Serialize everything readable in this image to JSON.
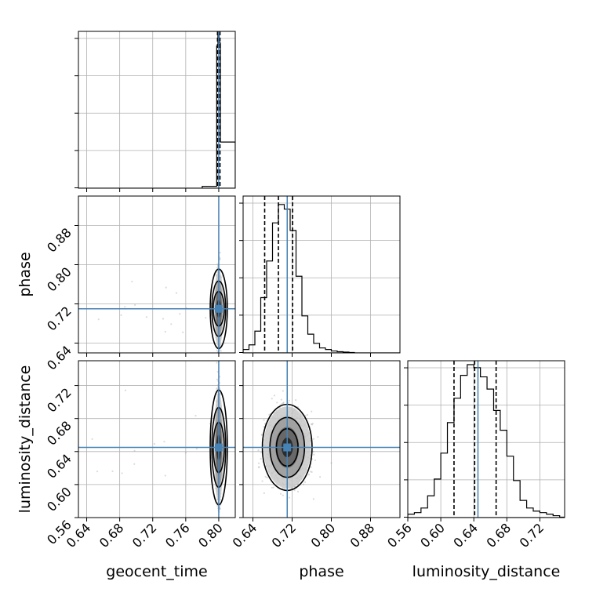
{
  "chart_data": {
    "type": "corner",
    "parameters": [
      "geocent_time",
      "phase",
      "luminosity_distance"
    ],
    "truths": {
      "geocent_time": 0.8,
      "phase": 0.71,
      "luminosity_distance": 0.645
    },
    "ranges": {
      "geocent_time": [
        0.63,
        0.82
      ],
      "phase": [
        0.62,
        0.94
      ],
      "luminosity_distance": [
        0.56,
        0.75
      ]
    },
    "ticks": {
      "geocent_time": [
        "0.64",
        "0.68",
        "0.72",
        "0.76",
        "0.80"
      ],
      "phase": [
        "0.64",
        "0.72",
        "0.80",
        "0.88"
      ],
      "luminosity_distance": [
        "0.56",
        "0.60",
        "0.64",
        "0.68",
        "0.72"
      ]
    },
    "quantiles": {
      "geocent_time": [
        0.7985,
        0.8,
        0.8015
      ],
      "phase": [
        0.664,
        0.692,
        0.721
      ],
      "luminosity_distance": [
        0.616,
        0.641,
        0.667
      ]
    },
    "histograms": {
      "geocent_time": {
        "edges": [
          0.78,
          0.7975,
          0.799,
          0.8005,
          0.802,
          0.82
        ],
        "counts": [
          0.01,
          0.93,
          1.0,
          0.95,
          0.3
        ]
      },
      "phase": {
        "edges": [
          0.62,
          0.632,
          0.644,
          0.656,
          0.668,
          0.68,
          0.692,
          0.704,
          0.716,
          0.728,
          0.74,
          0.752,
          0.764,
          0.776,
          0.788,
          0.8,
          0.812,
          0.824,
          0.836,
          0.848
        ],
        "counts": [
          0.02,
          0.05,
          0.14,
          0.36,
          0.6,
          0.85,
          0.97,
          0.94,
          0.8,
          0.5,
          0.24,
          0.12,
          0.06,
          0.03,
          0.02,
          0.01,
          0.005,
          0.003,
          0.0
        ]
      },
      "luminosity_distance": {
        "edges": [
          0.56,
          0.568,
          0.576,
          0.584,
          0.592,
          0.6,
          0.608,
          0.616,
          0.624,
          0.632,
          0.64,
          0.648,
          0.656,
          0.664,
          0.672,
          0.68,
          0.688,
          0.696,
          0.704,
          0.712,
          0.72,
          0.728,
          0.736,
          0.744,
          0.752
        ],
        "counts": [
          0.02,
          0.03,
          0.06,
          0.14,
          0.25,
          0.42,
          0.62,
          0.78,
          0.93,
          1.0,
          0.98,
          0.92,
          0.84,
          0.7,
          0.57,
          0.4,
          0.24,
          0.11,
          0.06,
          0.04,
          0.03,
          0.02,
          0.01,
          0.0
        ]
      }
    },
    "grid": true,
    "xlabels": [
      "geocent_time",
      "phase",
      "luminosity_distance"
    ],
    "ylabels": [
      "",
      "phase",
      "luminosity_distance"
    ],
    "colors": {
      "truth": "#4682b4",
      "hist": "#000000",
      "scatter": "#999999",
      "grid": "#b0b0b0"
    }
  }
}
